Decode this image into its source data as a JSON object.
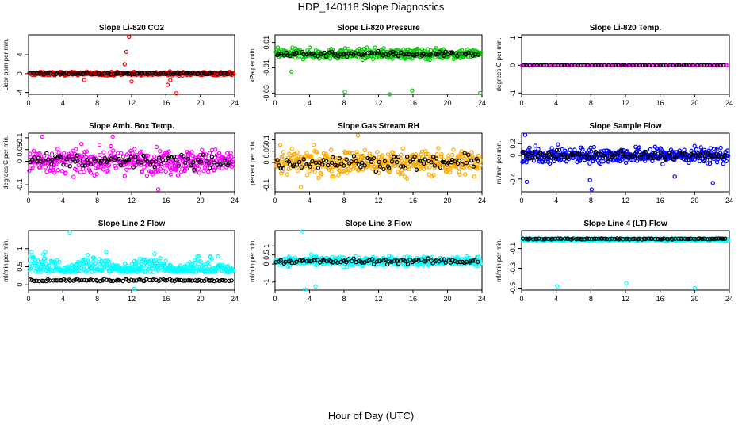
{
  "page": {
    "title": "HDP_140118  Slope Diagnostics",
    "x_caption": "Hour of Day (UTC)"
  },
  "chart_data": [
    {
      "type": "scatter",
      "title": "Slope Li-820 CO2",
      "ylabel": "Licor ppm per min.",
      "xlim": [
        0,
        24
      ],
      "ylim": [
        -4.4,
        8.2
      ],
      "yticks": [
        -4,
        0,
        4
      ],
      "xticks": [
        0,
        4,
        8,
        12,
        16,
        20,
        24
      ],
      "color": "#ff0000",
      "spread": 0.35,
      "outliers": [
        {
          "x": 11.7,
          "y": 7.8
        },
        {
          "x": 11.4,
          "y": 4.6
        },
        {
          "x": 11.2,
          "y": 2.0
        },
        {
          "x": 17.2,
          "y": -4.2
        },
        {
          "x": 16.2,
          "y": -2.4
        },
        {
          "x": 12.0,
          "y": -1.7
        },
        {
          "x": 6.5,
          "y": -1.4
        },
        {
          "x": 16.5,
          "y": -1.4
        }
      ],
      "series": [
        {
          "name": "data",
          "color": "#ff0000"
        },
        {
          "name": "mean",
          "color": "#000000"
        }
      ]
    },
    {
      "type": "scatter",
      "title": "Slope Li-820 Pressure",
      "ylabel": "kPa per min.",
      "xlim": [
        0,
        24
      ],
      "ylim": [
        -0.031,
        0.016
      ],
      "yticks": [
        -0.03,
        -0.01,
        0.01
      ],
      "xticks": [
        0,
        4,
        8,
        12,
        16,
        20,
        24
      ],
      "color": "#00cc00",
      "spread": 0.004,
      "outliers": [
        {
          "x": 8.1,
          "y": -0.029
        },
        {
          "x": 13.3,
          "y": -0.031
        },
        {
          "x": 15.9,
          "y": -0.028
        },
        {
          "x": 23.8,
          "y": -0.03
        },
        {
          "x": 1.9,
          "y": -0.013
        }
      ],
      "series": [
        {
          "name": "data",
          "color": "#00cc00"
        },
        {
          "name": "mean",
          "color": "#000000"
        }
      ]
    },
    {
      "type": "scatter",
      "title": "Slope Li-820 Temp.",
      "ylabel": "degrees C per min.",
      "xlim": [
        0,
        24
      ],
      "ylim": [
        -1.05,
        1.1
      ],
      "yticks": [
        -1.0,
        0.0,
        1.0
      ],
      "xticks": [
        0,
        4,
        8,
        12,
        16,
        20,
        24
      ],
      "color": "#ff00ff",
      "spread": 0.0,
      "outliers": [],
      "series": [
        {
          "name": "data",
          "color": "#ff00ff"
        },
        {
          "name": "mean",
          "color": "#000000"
        }
      ]
    },
    {
      "type": "scatter",
      "title": "Slope Amb. Box Temp.",
      "ylabel": "degrees C per min.",
      "xlim": [
        0,
        24
      ],
      "ylim": [
        -0.13,
        0.12
      ],
      "yticks": [
        -0.1,
        0.0,
        0.05,
        0.1
      ],
      "xticks": [
        0,
        4,
        8,
        12,
        16,
        20,
        24
      ],
      "color": "#ff00ff",
      "spread": 0.05,
      "outliers": [
        {
          "x": 1.6,
          "y": 0.105
        },
        {
          "x": 15.1,
          "y": -0.12
        },
        {
          "x": 9.8,
          "y": 0.105
        }
      ],
      "series": [
        {
          "name": "data",
          "color": "#ff00ff"
        },
        {
          "name": "mean",
          "color": "#000000"
        }
      ]
    },
    {
      "type": "scatter",
      "title": "Slope Gas Stream RH",
      "ylabel": "percent per min.",
      "xlim": [
        0,
        24
      ],
      "ylim": [
        -0.13,
        0.13
      ],
      "yticks": [
        -0.1,
        0.0,
        0.05,
        0.1
      ],
      "xticks": [
        0,
        4,
        8,
        12,
        16,
        20,
        24
      ],
      "color": "#ffaa00",
      "spread": 0.055,
      "outliers": [
        {
          "x": 9.6,
          "y": 0.12
        },
        {
          "x": 3.0,
          "y": -0.11
        }
      ],
      "series": [
        {
          "name": "data",
          "color": "#ffaa00"
        },
        {
          "name": "mean",
          "color": "#000000"
        }
      ]
    },
    {
      "type": "scatter",
      "title": "Slope Sample Flow",
      "ylabel": "ml/min per min.",
      "xlim": [
        0,
        24
      ],
      "ylim": [
        -0.62,
        0.38
      ],
      "yticks": [
        -0.4,
        0.0,
        0.2
      ],
      "xticks": [
        0,
        4,
        8,
        12,
        16,
        20,
        24
      ],
      "color": "#0000ff",
      "spread": 0.13,
      "outliers": [
        {
          "x": 0.4,
          "y": 0.35
        },
        {
          "x": 8.1,
          "y": -0.58
        },
        {
          "x": 7.9,
          "y": -0.42
        },
        {
          "x": 0.6,
          "y": -0.45
        },
        {
          "x": 22.1,
          "y": -0.47
        },
        {
          "x": 17.7,
          "y": -0.36
        }
      ],
      "series": [
        {
          "name": "data",
          "color": "#0000ff"
        },
        {
          "name": "mean",
          "color": "#000000"
        }
      ]
    },
    {
      "type": "scatter",
      "title": "Slope Line 2 Flow",
      "ylabel": "ml/min per min.",
      "xlim": [
        0,
        24
      ],
      "ylim": [
        -0.15,
        1.5
      ],
      "yticks": [
        0.0,
        0.5,
        1.0
      ],
      "xticks": [
        0,
        4,
        8,
        12,
        16,
        20,
        24
      ],
      "color": "#00ffff",
      "spread": 0.35,
      "outliers": [
        {
          "x": 4.8,
          "y": 1.45
        },
        {
          "x": 12.3,
          "y": -0.12
        }
      ],
      "series": [
        {
          "name": "data",
          "color": "#00ffff"
        },
        {
          "name": "mean",
          "color": "#000000"
        }
      ]
    },
    {
      "type": "scatter",
      "title": "Slope Line 3 Flow",
      "ylabel": "ml/min per min.",
      "xlim": [
        0,
        24
      ],
      "ylim": [
        -1.45,
        1.85
      ],
      "yticks": [
        -1.0,
        0.0,
        0.5,
        1.0
      ],
      "xticks": [
        0,
        4,
        8,
        12,
        16,
        20,
        24
      ],
      "color": "#00ffff",
      "spread": 0.25,
      "outliers": [
        {
          "x": 3.2,
          "y": 1.8
        },
        {
          "x": 3.5,
          "y": -1.4
        },
        {
          "x": 4.7,
          "y": -1.25
        }
      ],
      "series": [
        {
          "name": "data",
          "color": "#00ffff"
        },
        {
          "name": "mean",
          "color": "#000000"
        }
      ]
    },
    {
      "type": "scatter",
      "title": "Slope Line 4 (LT) Flow",
      "ylabel": "ml/min per min.",
      "xlim": [
        0,
        24
      ],
      "ylim": [
        -0.52,
        0.08
      ],
      "yticks": [
        -0.5,
        -0.3,
        -0.1
      ],
      "xticks": [
        0,
        4,
        8,
        12,
        16,
        20,
        24
      ],
      "color": "#00ffff",
      "spread": 0.02,
      "outliers": [
        {
          "x": 4.1,
          "y": -0.48
        },
        {
          "x": 12.1,
          "y": -0.45
        },
        {
          "x": 20.0,
          "y": -0.5
        }
      ],
      "series": [
        {
          "name": "data",
          "color": "#00ffff"
        },
        {
          "name": "mean",
          "color": "#000000"
        }
      ]
    }
  ]
}
